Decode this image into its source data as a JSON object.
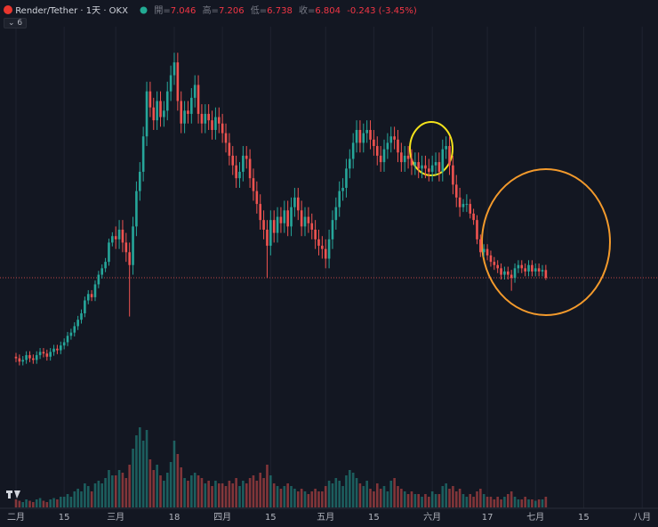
{
  "chart_data": {
    "type": "candlestick",
    "header": {
      "symbol": "Render/Tether · 1天 · OKX",
      "ohlc_labels": [
        "開=",
        "高=",
        "低=",
        "收="
      ],
      "change": "-0.243 (-3.45%)",
      "indicators": "6"
    },
    "up_color": "#26a69a",
    "down_color": "#ef5350",
    "xlim": [
      -4.65,
      186.6
    ],
    "ylim": [
      -0.39,
      15.44
    ],
    "volume_lim": [
      0,
      30
    ],
    "grid": true,
    "xticks": [
      {
        "value": 0,
        "label": "二月"
      },
      {
        "value": 14,
        "label": "15"
      },
      {
        "value": 29,
        "label": "三月"
      },
      {
        "value": 46,
        "label": "18"
      },
      {
        "value": 60,
        "label": "四月"
      },
      {
        "value": 74,
        "label": "15"
      },
      {
        "value": 90,
        "label": "五月"
      },
      {
        "value": 104,
        "label": "15"
      },
      {
        "value": 121,
        "label": "六月"
      },
      {
        "value": 137,
        "label": "17"
      },
      {
        "value": 151,
        "label": "七月"
      },
      {
        "value": 165,
        "label": "15"
      },
      {
        "value": 182,
        "label": "八月"
      }
    ],
    "x": [
      0,
      1,
      2,
      3,
      4,
      5,
      6,
      7,
      8,
      9,
      10,
      11,
      12,
      13,
      14,
      15,
      16,
      17,
      18,
      19,
      20,
      21,
      22,
      23,
      24,
      25,
      26,
      27,
      28,
      29,
      30,
      31,
      32,
      33,
      34,
      35,
      36,
      37,
      38,
      39,
      40,
      41,
      42,
      43,
      44,
      45,
      46,
      47,
      48,
      49,
      50,
      51,
      52,
      53,
      54,
      55,
      56,
      57,
      58,
      59,
      60,
      61,
      62,
      63,
      64,
      65,
      66,
      67,
      68,
      69,
      70,
      71,
      72,
      73,
      74,
      75,
      76,
      77,
      78,
      79,
      80,
      81,
      82,
      83,
      84,
      85,
      86,
      87,
      88,
      89,
      90,
      91,
      92,
      93,
      94,
      95,
      96,
      97,
      98,
      99,
      100,
      101,
      102,
      103,
      104,
      105,
      106,
      107,
      108,
      109,
      110,
      111,
      112,
      113,
      114,
      115,
      116,
      117,
      118,
      119,
      120,
      121,
      122,
      123,
      124,
      125,
      126,
      127,
      128,
      129,
      130,
      131,
      132,
      133,
      134,
      135,
      136,
      137,
      138,
      139,
      140,
      141,
      142,
      143,
      144,
      145,
      146,
      147,
      148,
      149,
      150,
      151,
      152,
      153,
      154
    ],
    "candles": [
      [
        4.35,
        4.47,
        4.18,
        4.3
      ],
      [
        4.3,
        4.42,
        4.08,
        4.2
      ],
      [
        4.2,
        4.37,
        4.08,
        4.25
      ],
      [
        4.25,
        4.52,
        4.13,
        4.4
      ],
      [
        4.4,
        4.52,
        4.18,
        4.3
      ],
      [
        4.3,
        4.42,
        4.13,
        4.25
      ],
      [
        4.25,
        4.52,
        4.13,
        4.4
      ],
      [
        4.4,
        4.62,
        4.28,
        4.5
      ],
      [
        4.5,
        4.62,
        4.33,
        4.45
      ],
      [
        4.45,
        4.57,
        4.23,
        4.35
      ],
      [
        4.35,
        4.62,
        4.23,
        4.5
      ],
      [
        4.5,
        4.72,
        4.38,
        4.6
      ],
      [
        4.6,
        4.72,
        4.43,
        4.55
      ],
      [
        4.55,
        4.82,
        4.43,
        4.7
      ],
      [
        4.7,
        4.92,
        4.58,
        4.8
      ],
      [
        4.8,
        5.12,
        4.68,
        5.0
      ],
      [
        5.0,
        5.22,
        4.88,
        5.1
      ],
      [
        5.1,
        5.42,
        4.98,
        5.3
      ],
      [
        5.3,
        5.62,
        5.18,
        5.5
      ],
      [
        5.5,
        5.82,
        5.38,
        5.7
      ],
      [
        5.7,
        6.22,
        5.58,
        6.1
      ],
      [
        6.1,
        6.42,
        5.98,
        6.3
      ],
      [
        6.3,
        6.42,
        6.08,
        6.2
      ],
      [
        6.2,
        6.72,
        6.08,
        6.6
      ],
      [
        6.6,
        7.02,
        6.48,
        6.9
      ],
      [
        6.9,
        7.22,
        6.78,
        7.1
      ],
      [
        7.1,
        7.42,
        6.98,
        7.3
      ],
      [
        7.3,
        8.02,
        7.18,
        7.9
      ],
      [
        7.9,
        8.22,
        7.78,
        8.1
      ],
      [
        8.1,
        8.4,
        7.7,
        8.0
      ],
      [
        8.0,
        8.6,
        7.7,
        8.3
      ],
      [
        8.3,
        8.6,
        7.6,
        7.9
      ],
      [
        7.9,
        8.2,
        7.3,
        7.6
      ],
      [
        7.6,
        7.9,
        5.6,
        7.2
      ],
      [
        7.2,
        8.7,
        6.9,
        8.4
      ],
      [
        8.4,
        9.8,
        8.1,
        9.5
      ],
      [
        9.5,
        10.4,
        9.2,
        10.1
      ],
      [
        10.1,
        11.5,
        9.8,
        11.2
      ],
      [
        11.2,
        12.9,
        10.9,
        12.6
      ],
      [
        12.6,
        12.9,
        11.8,
        12.1
      ],
      [
        12.1,
        12.4,
        11.4,
        11.7
      ],
      [
        11.7,
        12.6,
        11.4,
        12.3
      ],
      [
        12.3,
        12.6,
        11.5,
        11.8
      ],
      [
        11.8,
        12.3,
        11.5,
        12.0
      ],
      [
        12.0,
        12.9,
        11.7,
        12.6
      ],
      [
        12.6,
        13.4,
        12.3,
        13.1
      ],
      [
        13.1,
        13.8,
        12.8,
        13.5
      ],
      [
        13.5,
        13.8,
        12.0,
        12.3
      ],
      [
        12.3,
        12.6,
        11.3,
        11.6
      ],
      [
        11.6,
        12.3,
        11.3,
        12.0
      ],
      [
        12.0,
        12.3,
        11.6,
        11.9
      ],
      [
        11.9,
        12.7,
        11.6,
        12.4
      ],
      [
        12.4,
        13.1,
        12.1,
        12.8
      ],
      [
        12.8,
        13.1,
        11.6,
        11.9
      ],
      [
        11.9,
        12.2,
        11.3,
        11.6
      ],
      [
        11.6,
        12.2,
        11.3,
        11.9
      ],
      [
        11.9,
        12.2,
        11.4,
        11.7
      ],
      [
        11.7,
        12.0,
        11.1,
        11.4
      ],
      [
        11.4,
        12.1,
        11.1,
        11.8
      ],
      [
        11.8,
        12.1,
        11.3,
        11.6
      ],
      [
        11.6,
        11.9,
        11.0,
        11.3
      ],
      [
        11.3,
        11.6,
        10.7,
        11.0
      ],
      [
        11.0,
        11.3,
        10.3,
        10.6
      ],
      [
        10.6,
        10.9,
        10.0,
        10.3
      ],
      [
        10.3,
        10.6,
        9.6,
        9.9
      ],
      [
        9.9,
        10.4,
        9.6,
        10.1
      ],
      [
        10.1,
        10.9,
        9.8,
        10.6
      ],
      [
        10.6,
        10.9,
        10.2,
        10.5
      ],
      [
        10.5,
        10.8,
        9.6,
        9.9
      ],
      [
        9.9,
        10.2,
        9.2,
        9.5
      ],
      [
        9.5,
        9.8,
        8.8,
        9.1
      ],
      [
        9.1,
        9.4,
        8.3,
        8.6
      ],
      [
        8.6,
        8.9,
        8.0,
        8.3
      ],
      [
        8.3,
        8.6,
        6.8,
        7.8
      ],
      [
        7.8,
        8.9,
        7.5,
        8.6
      ],
      [
        8.6,
        8.9,
        7.9,
        8.2
      ],
      [
        8.2,
        9.0,
        7.9,
        8.7
      ],
      [
        8.7,
        9.0,
        8.2,
        8.5
      ],
      [
        8.5,
        9.2,
        8.2,
        8.9
      ],
      [
        8.9,
        9.2,
        8.1,
        8.4
      ],
      [
        8.4,
        9.3,
        8.1,
        9.0
      ],
      [
        9.0,
        9.6,
        8.7,
        9.3
      ],
      [
        9.3,
        9.6,
        8.6,
        8.9
      ],
      [
        8.9,
        9.2,
        8.1,
        8.4
      ],
      [
        8.4,
        9.0,
        8.1,
        8.7
      ],
      [
        8.7,
        9.0,
        8.2,
        8.5
      ],
      [
        8.5,
        8.8,
        8.0,
        8.3
      ],
      [
        8.3,
        8.6,
        7.7,
        8.0
      ],
      [
        8.0,
        8.3,
        7.5,
        7.8
      ],
      [
        7.8,
        8.1,
        7.4,
        7.7
      ],
      [
        7.7,
        8.0,
        7.1,
        7.4
      ],
      [
        7.4,
        8.3,
        7.1,
        8.0
      ],
      [
        8.0,
        8.9,
        7.7,
        8.6
      ],
      [
        8.6,
        9.3,
        8.3,
        9.0
      ],
      [
        9.0,
        9.8,
        8.7,
        9.5
      ],
      [
        9.5,
        9.9,
        9.2,
        9.6
      ],
      [
        9.6,
        10.5,
        9.3,
        10.2
      ],
      [
        10.2,
        10.8,
        9.9,
        10.5
      ],
      [
        10.5,
        11.3,
        10.2,
        11.0
      ],
      [
        11.0,
        11.7,
        10.7,
        11.4
      ],
      [
        11.4,
        11.7,
        10.7,
        11.0
      ],
      [
        11.0,
        11.6,
        10.7,
        11.3
      ],
      [
        11.3,
        11.7,
        11.0,
        11.4
      ],
      [
        11.4,
        11.7,
        10.8,
        11.1
      ],
      [
        11.1,
        11.4,
        10.6,
        10.9
      ],
      [
        10.9,
        11.2,
        10.3,
        10.6
      ],
      [
        10.6,
        10.9,
        10.1,
        10.4
      ],
      [
        10.4,
        11.1,
        10.1,
        10.8
      ],
      [
        10.8,
        11.3,
        10.5,
        11.0
      ],
      [
        11.0,
        11.5,
        10.7,
        11.2
      ],
      [
        11.2,
        11.5,
        10.8,
        11.1
      ],
      [
        11.1,
        11.4,
        10.4,
        10.7
      ],
      [
        10.7,
        11.0,
        10.1,
        10.4
      ],
      [
        10.4,
        10.9,
        10.1,
        10.6
      ],
      [
        10.6,
        10.9,
        10.2,
        10.5
      ],
      [
        10.5,
        10.8,
        10.0,
        10.3
      ],
      [
        10.3,
        10.7,
        10.0,
        10.4
      ],
      [
        10.4,
        10.7,
        9.9,
        10.2
      ],
      [
        10.2,
        10.6,
        9.9,
        10.3
      ],
      [
        10.3,
        10.6,
        9.9,
        10.2
      ],
      [
        10.2,
        10.5,
        9.8,
        10.1
      ],
      [
        10.1,
        10.6,
        9.8,
        10.3
      ],
      [
        10.3,
        10.7,
        10.0,
        10.4
      ],
      [
        10.4,
        10.7,
        9.8,
        10.1
      ],
      [
        10.1,
        11.1,
        9.8,
        10.8
      ],
      [
        10.8,
        11.2,
        10.5,
        10.9
      ],
      [
        10.9,
        11.2,
        10.0,
        10.3
      ],
      [
        10.3,
        10.6,
        9.4,
        9.7
      ],
      [
        9.7,
        10.0,
        9.0,
        9.3
      ],
      [
        9.3,
        9.6,
        8.7,
        9.0
      ],
      [
        9.0,
        9.25,
        8.85,
        9.1
      ],
      [
        9.1,
        9.4,
        8.85,
        9.1
      ],
      [
        9.1,
        9.25,
        8.65,
        8.8
      ],
      [
        8.8,
        8.95,
        8.45,
        8.6
      ],
      [
        8.6,
        8.75,
        7.85,
        8.0
      ],
      [
        8.0,
        8.15,
        7.45,
        7.6
      ],
      [
        7.6,
        7.85,
        7.45,
        7.7
      ],
      [
        7.7,
        7.85,
        7.35,
        7.5
      ],
      [
        7.5,
        7.65,
        7.15,
        7.3
      ],
      [
        7.3,
        7.45,
        7.05,
        7.2
      ],
      [
        7.2,
        7.35,
        6.95,
        7.1
      ],
      [
        7.1,
        7.25,
        6.75,
        6.9
      ],
      [
        6.9,
        7.15,
        6.75,
        7.0
      ],
      [
        7.0,
        7.15,
        6.75,
        6.9
      ],
      [
        6.9,
        7.05,
        6.4,
        6.8
      ],
      [
        6.8,
        7.25,
        6.65,
        7.1
      ],
      [
        7.1,
        7.35,
        6.95,
        7.2
      ],
      [
        7.2,
        7.35,
        6.95,
        7.1
      ],
      [
        7.1,
        7.25,
        6.85,
        7.0
      ],
      [
        7.0,
        7.35,
        6.85,
        7.2
      ],
      [
        7.2,
        7.35,
        6.85,
        7.0
      ],
      [
        7.0,
        7.25,
        6.85,
        7.1
      ],
      [
        7.1,
        7.25,
        6.85,
        7.0
      ],
      [
        7.0,
        7.2,
        6.85,
        7.046
      ],
      [
        7.046,
        7.206,
        6.738,
        6.804
      ]
    ],
    "volume": [
      3,
      2.5,
      2,
      3,
      2.5,
      2,
      3,
      3.5,
      2.5,
      2,
      3,
      3.5,
      3,
      4,
      4,
      5,
      4,
      6,
      7,
      6,
      9,
      8,
      6,
      9,
      10,
      9,
      11,
      14,
      12,
      12,
      14,
      13,
      11,
      16,
      22,
      27,
      30,
      25,
      29,
      18,
      14,
      16,
      12,
      10,
      13,
      17,
      25,
      20,
      15,
      11,
      10,
      12,
      13,
      12,
      11,
      9,
      10,
      8,
      10,
      9,
      9,
      8,
      10,
      9,
      11,
      8,
      10,
      9,
      11,
      12,
      10,
      13,
      11,
      16,
      12,
      9,
      8,
      7,
      8,
      9,
      8,
      7,
      6,
      7,
      6,
      5,
      6,
      7,
      6,
      6,
      8,
      10,
      9,
      11,
      10,
      8,
      12,
      14,
      13,
      11,
      9,
      8,
      10,
      7,
      6,
      9,
      7,
      8,
      6,
      10,
      11,
      8,
      7,
      6,
      5,
      6,
      5,
      5,
      4,
      5,
      4,
      6,
      5,
      5,
      8,
      9,
      7,
      8,
      6,
      7,
      5,
      4,
      5,
      4,
      6,
      7,
      5,
      4,
      4,
      3,
      4,
      3,
      4,
      5,
      6,
      4,
      3,
      3,
      4,
      3,
      3,
      2.5,
      3,
      3,
      4
    ]
  }
}
